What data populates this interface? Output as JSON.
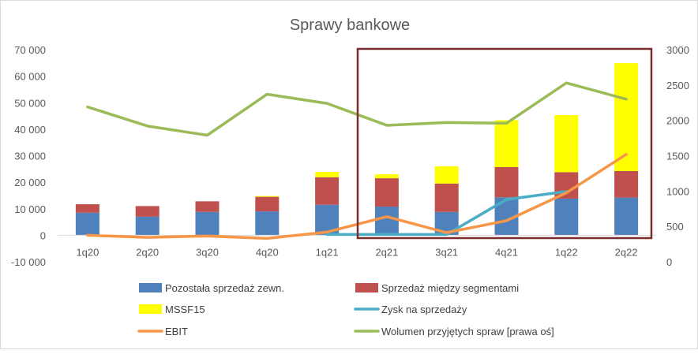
{
  "chart_data": {
    "type": "bar",
    "title": "Sprawy bankowe",
    "xlabel": "",
    "ylabel": "",
    "categories": [
      "1q20",
      "2q20",
      "3q20",
      "4q20",
      "1q21",
      "2q21",
      "3q21",
      "4q21",
      "1q22",
      "2q22"
    ],
    "ylim": [
      -10000,
      70000
    ],
    "y_ticks": [
      "-10 000",
      "0",
      "10 000",
      "20 000",
      "30 000",
      "40 000",
      "50 000",
      "60 000",
      "70 000"
    ],
    "y2lim": [
      0,
      3000
    ],
    "y2_ticks": [
      "0",
      "500",
      "1000",
      "1500",
      "2000",
      "2500",
      "3000"
    ],
    "grid": false,
    "legend_position": "bottom",
    "highlight_box_color": "#7b2c2c",
    "series": [
      {
        "name": "Pozostała sprzedaż zewn.",
        "kind": "bar",
        "axis": "left",
        "color": "#4f81bd",
        "values": [
          8500,
          7000,
          8800,
          9000,
          11500,
          10800,
          8800,
          14300,
          13800,
          14200
        ]
      },
      {
        "name": "Sprzedaż między segmentami",
        "kind": "bar",
        "axis": "left",
        "color": "#c0504d",
        "values": [
          3200,
          4000,
          4000,
          5500,
          10400,
          10700,
          10700,
          11400,
          10000,
          10000
        ]
      },
      {
        "name": "MSSF15",
        "kind": "bar",
        "axis": "left",
        "color": "#ffff00",
        "values": [
          0,
          0,
          0,
          300,
          2000,
          1500,
          6500,
          17700,
          21500,
          40700
        ]
      },
      {
        "name": "Zysk na sprzedaży",
        "kind": "line",
        "axis": "left",
        "color": "#4bacc6",
        "values": [
          null,
          null,
          null,
          null,
          300,
          300,
          300,
          13500,
          16500,
          null
        ]
      },
      {
        "name": "EBIT",
        "kind": "line",
        "axis": "left",
        "color": "#f79646",
        "values": [
          0,
          -800,
          -300,
          -1200,
          1200,
          7000,
          1000,
          5500,
          16000,
          30500
        ]
      },
      {
        "name": "Wolumen przyjętych spraw [prawa oś]",
        "kind": "line",
        "axis": "right",
        "color": "#9bbb59",
        "values": [
          2190,
          1920,
          1790,
          2370,
          2240,
          1930,
          1970,
          1960,
          2530,
          2300
        ]
      }
    ]
  }
}
